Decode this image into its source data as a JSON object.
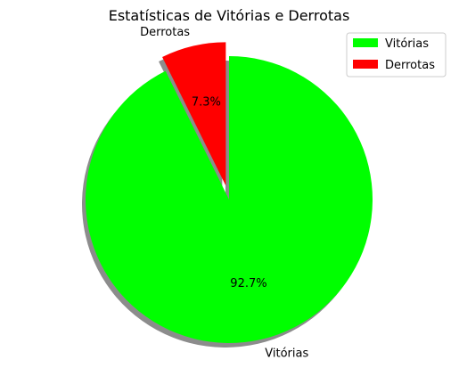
{
  "chart_data": {
    "type": "pie",
    "title": "Estatísticas de Vitórias e Derrotas",
    "labels": [
      "Vitórias",
      "Derrotas"
    ],
    "values": [
      92.7,
      7.3
    ],
    "percent_labels": [
      "92.7%",
      "7.3%"
    ],
    "colors": [
      "#00ff00",
      "#ff0000"
    ],
    "explode": [
      0,
      0.1
    ],
    "start_angle_deg": 90,
    "counterclock": false,
    "shadow": true,
    "legend": {
      "placement": "top-right",
      "entries": [
        "Vitórias",
        "Derrotas"
      ]
    }
  }
}
